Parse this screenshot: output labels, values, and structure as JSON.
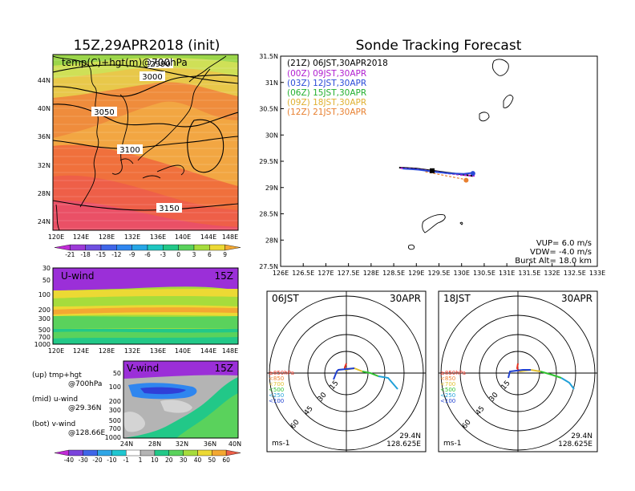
{
  "left": {
    "title": "15Z,29APR2018 (init)",
    "map_label": "temp(C)+hgt(m)@700hPa",
    "contours": [
      "2990",
      "3000",
      "3050",
      "3100",
      "3150"
    ],
    "lat_ticks": [
      "44N",
      "40N",
      "36N",
      "32N",
      "28N",
      "24N"
    ],
    "lon_ticks": [
      "120E",
      "124E",
      "128E",
      "132E",
      "136E",
      "140E",
      "144E",
      "148E"
    ],
    "temp_scale": [
      "-21",
      "-18",
      "-15",
      "-12",
      "-9",
      "-6",
      "-3",
      "0",
      "3",
      "6",
      "9"
    ],
    "temp_colors": [
      "#c02bd6",
      "#9d3ad8",
      "#6f50e0",
      "#3f66e8",
      "#2f86ef",
      "#26a6e6",
      "#1fc6c0",
      "#22c888",
      "#5ad25c",
      "#a6dc3c",
      "#ecd934",
      "#f3a832"
    ],
    "uwind_label": "U-wind",
    "vwind_label": "V-wind",
    "time_badge": "15Z",
    "p_ticks_u": [
      "30",
      "50",
      "100",
      "200",
      "300",
      "500",
      "700",
      "1000"
    ],
    "p_ticks_v": [
      "200",
      "300",
      "500",
      "700",
      "1000"
    ],
    "p_ticks_v_top": [
      "50",
      "100"
    ],
    "v_lat_ticks": [
      "24N",
      "28N",
      "32N",
      "36N",
      "40N"
    ],
    "wind_scale": [
      "-40",
      "-30",
      "-20",
      "-10",
      "-1",
      "1",
      "10",
      "20",
      "30",
      "40",
      "50",
      "60"
    ],
    "notes": [
      {
        "head": "(up) tmp+hgt",
        "sub": "@700hPa"
      },
      {
        "head": "(mid) u-wind",
        "sub": "@29.36N"
      },
      {
        "head": "(bot) v-wind",
        "sub": "@128.66E"
      }
    ]
  },
  "chart_data": [
    {
      "type": "line",
      "title": "Sonde Tracking Forecast",
      "xlabel": "",
      "ylabel": "",
      "xlim": [
        126,
        133
      ],
      "ylim": [
        27.5,
        31.5
      ],
      "x_ticks": [
        "126E",
        "126.5E",
        "127E",
        "127.5E",
        "128E",
        "128.5E",
        "129E",
        "129.5E",
        "130E",
        "130.5E",
        "131E",
        "131.5E",
        "132E",
        "132.5E",
        "133E"
      ],
      "y_ticks": [
        "27.5N",
        "28N",
        "28.5N",
        "29N",
        "29.5N",
        "30N",
        "30.5N",
        "31N",
        "31.5N"
      ],
      "legend": [
        {
          "text": "(21Z) 06JST,30APR2018",
          "color": "#000000"
        },
        {
          "text": "(00Z) 09JST,30APR",
          "color": "#b020d0"
        },
        {
          "text": "(03Z) 12JST,30APR",
          "color": "#2a4ad8"
        },
        {
          "text": "(06Z) 15JST,30APR",
          "color": "#22b02e"
        },
        {
          "text": "(09Z) 18JST,30APR",
          "color": "#e0b030"
        },
        {
          "text": "(12Z) 21JST,30APR",
          "color": "#e88030"
        }
      ],
      "series": [
        {
          "name": "(21Z) 06JST,30APR2018",
          "color": "#000000",
          "x": [
            128.62,
            129.0,
            129.35,
            129.7,
            130.0,
            130.25
          ],
          "y": [
            29.38,
            29.36,
            29.32,
            29.28,
            29.25,
            29.22
          ]
        },
        {
          "name": "(00Z) 09JST,30APR",
          "color": "#b020d0",
          "x": [
            128.65,
            129.0,
            129.35,
            129.7,
            130.0,
            130.3
          ],
          "y": [
            29.37,
            29.35,
            29.31,
            29.27,
            29.24,
            29.22
          ]
        },
        {
          "name": "(03Z) 12JST,30APR",
          "color": "#2a4ad8",
          "x": [
            128.7,
            129.05,
            129.4,
            129.75,
            130.05,
            130.25
          ],
          "y": [
            29.36,
            29.34,
            29.3,
            29.27,
            29.26,
            29.28
          ]
        },
        {
          "name": "(12Z) 21JST,30APR",
          "color": "#e88030",
          "x": [
            129.2,
            129.5,
            129.8,
            130.1
          ],
          "y": [
            29.3,
            29.25,
            29.2,
            29.15
          ]
        }
      ],
      "markers": [
        {
          "x": 129.35,
          "y": 29.32,
          "color": "#000000",
          "shape": "square"
        },
        {
          "x": 130.25,
          "y": 29.27,
          "color": "#2a4ad8",
          "shape": "circle"
        },
        {
          "x": 130.1,
          "y": 29.14,
          "color": "#e88030",
          "shape": "circle"
        }
      ],
      "info": [
        "VUP= 6.0 m/s",
        "VDW= -4.0 m/s",
        "Burst Alt= 18.0 km"
      ]
    },
    {
      "type": "polar",
      "title": "06JST",
      "date": "30APR",
      "ring_labels": [
        "15",
        "30",
        "45",
        "60"
      ],
      "legend": [
        {
          "text": "≥850hPa",
          "color": "#e83020"
        },
        {
          "text": "<850",
          "color": "#f08030"
        },
        {
          "text": "<700",
          "color": "#e0c030"
        },
        {
          "text": "<500",
          "color": "#30c030"
        },
        {
          "text": "<250",
          "color": "#20a0d8"
        },
        {
          "text": "<100",
          "color": "#2040d0"
        }
      ],
      "unit": "ms-1",
      "location": [
        "29.4N",
        "128.625E"
      ]
    },
    {
      "type": "polar",
      "title": "18JST",
      "date": "30APR",
      "ring_labels": [
        "15",
        "30",
        "45",
        "60"
      ],
      "legend": [
        {
          "text": "≥850hPa",
          "color": "#e83020"
        },
        {
          "text": "<850",
          "color": "#f08030"
        },
        {
          "text": "<700",
          "color": "#e0c030"
        },
        {
          "text": "<500",
          "color": "#30c030"
        },
        {
          "text": "<250",
          "color": "#20a0d8"
        },
        {
          "text": "<100",
          "color": "#2040d0"
        }
      ],
      "unit": "ms-1",
      "location": [
        "29.4N",
        "128.625E"
      ]
    }
  ]
}
